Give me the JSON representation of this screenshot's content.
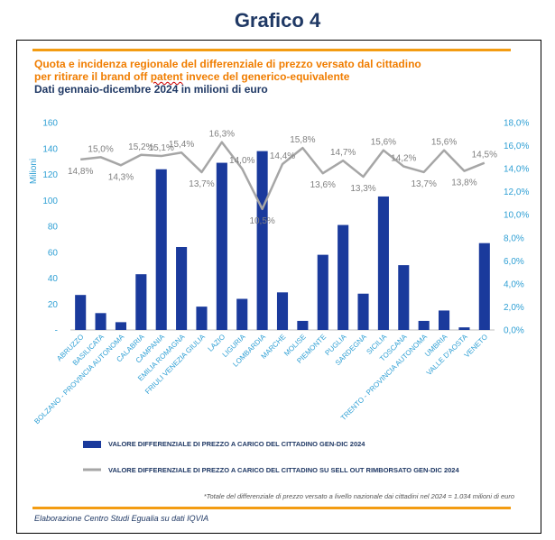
{
  "header": {
    "title": "Grafico 4"
  },
  "subtitle": {
    "line1": "Quota e incidenza regionale del differenziale di prezzo versato dal cittadino",
    "line2_pre": "per ritirare il brand off ",
    "line2_word": "patent",
    "line2_post": " invece del generico-equivalente",
    "line3": "Dati gennaio-dicembre 2024 in milioni di euro"
  },
  "colors": {
    "bar": "#1a3a9c",
    "line": "#a6a6a6",
    "axis_text": "#2e9fd4",
    "orange": "#f07d00",
    "dark_blue": "#1f3864"
  },
  "chart_data": {
    "type": "bar",
    "title": "Quota e incidenza regionale del differenziale di prezzo versato dal cittadino per ritirare il brand off patent invece del generico-equivalente",
    "ylabel": "Milioni",
    "ylim": [
      0,
      160
    ],
    "y_ticks": [
      "-",
      "20",
      "40",
      "60",
      "80",
      "100",
      "120",
      "140",
      "160"
    ],
    "y2lim": [
      0,
      18
    ],
    "y2_ticks": [
      "0,0%",
      "2,0%",
      "4,0%",
      "6,0%",
      "8,0%",
      "10,0%",
      "12,0%",
      "14,0%",
      "16,0%",
      "18,0%"
    ],
    "grid": false,
    "categories": [
      "ABRUZZO",
      "BASILICATA",
      "BOLZANO - PROVINCIA AUTONOMA",
      "CALABRIA",
      "CAMPANIA",
      "EMILIA ROMAGNA",
      "FRIULI VENEZIA GIULIA",
      "LAZIO",
      "LIGURIA",
      "LOMBARDIA",
      "MARCHE",
      "MOLISE",
      "PIEMONTE",
      "PUGLIA",
      "SARDEGNA",
      "SICILIA",
      "TOSCANA",
      "TRENTO - PROVINCIA AUTONOMA",
      "UMBRIA",
      "VALLE D'AOSTA",
      "VENETO"
    ],
    "series": [
      {
        "name": "VALORE DIFFERENZIALE DI PREZZO A CARICO DEL CITTADINO GEN-DIC 2024",
        "type": "bar",
        "axis": "left",
        "values": [
          27,
          13,
          6,
          43,
          124,
          64,
          18,
          129,
          24,
          138,
          29,
          7,
          58,
          81,
          28,
          103,
          50,
          7,
          15,
          2,
          67
        ]
      },
      {
        "name": "VALORE DIFFERENZIALE DI PREZZO A CARICO DEL CITTADINO  SU SELL OUT RIMBORSATO GEN-DIC 2024",
        "type": "line",
        "axis": "right",
        "values": [
          14.8,
          15.0,
          14.3,
          15.2,
          15.1,
          15.4,
          13.7,
          16.3,
          14.0,
          10.5,
          14.4,
          15.8,
          13.6,
          14.7,
          13.3,
          15.6,
          14.2,
          13.7,
          15.6,
          13.8,
          14.5
        ],
        "labels": [
          "14,8%",
          "15,0%",
          "14,3%",
          "15,2%",
          "15,1%",
          "15,4%",
          "13,7%",
          "16,3%",
          "14,0%",
          "10,5%",
          "14,4%",
          "15,8%",
          "13,6%",
          "14,7%",
          "13,3%",
          "15,6%",
          "14,2%",
          "13,7%",
          "15,6%",
          "13,8%",
          "14,5%"
        ]
      }
    ],
    "legend": {
      "position": "bottom"
    }
  },
  "footnote": "*Totale del differenziale di prezzo versato a livello nazionale dai cittadini nel 2024 = 1.034 milioni di euro",
  "source": "Elaborazione Centro Studi Egualia su dati IQVIA"
}
